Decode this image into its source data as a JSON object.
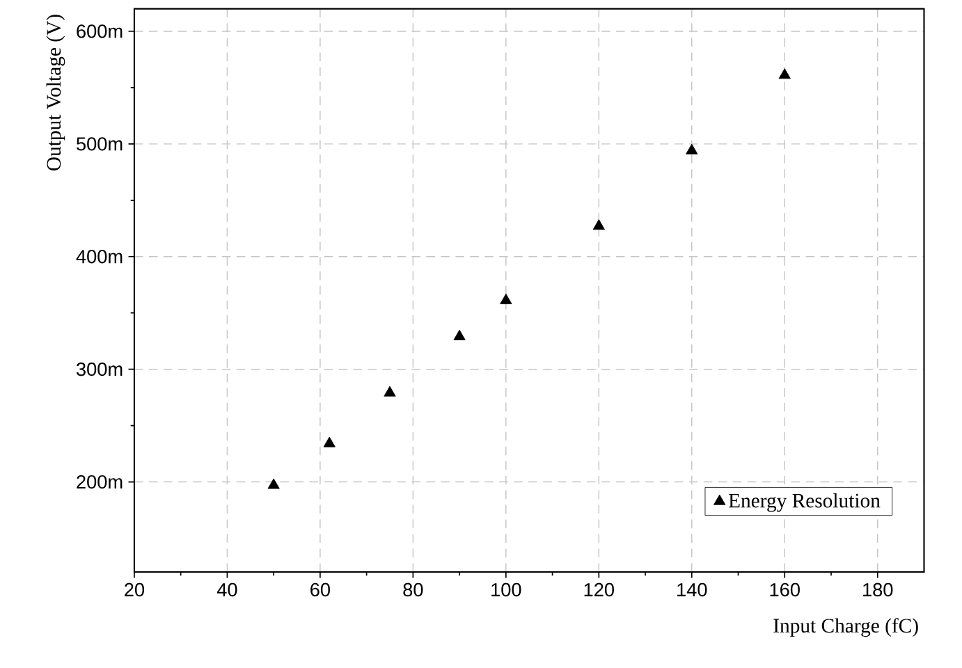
{
  "chart_data": {
    "type": "scatter",
    "xlabel": "Input Charge (fC)",
    "ylabel": "Output Voltage (V)",
    "x": [
      50,
      62,
      75,
      90,
      100,
      120,
      140,
      160
    ],
    "series": [
      {
        "name": "Energy Resolution",
        "color": "#000000",
        "values": [
          197,
          234,
          279,
          329,
          361,
          427,
          494,
          561
        ]
      }
    ],
    "xlim": [
      20,
      190
    ],
    "xticks": [
      20,
      40,
      60,
      80,
      100,
      120,
      140,
      160,
      180
    ],
    "ylim": [
      120,
      620
    ],
    "yticks": [
      {
        "value": 200,
        "label": "200m"
      },
      {
        "value": 300,
        "label": "300m"
      },
      {
        "value": 400,
        "label": "400m"
      },
      {
        "value": 500,
        "label": "500m"
      },
      {
        "value": 600,
        "label": "600m"
      }
    ],
    "grid": true,
    "legend": "bottom right",
    "marker": "triangle"
  }
}
